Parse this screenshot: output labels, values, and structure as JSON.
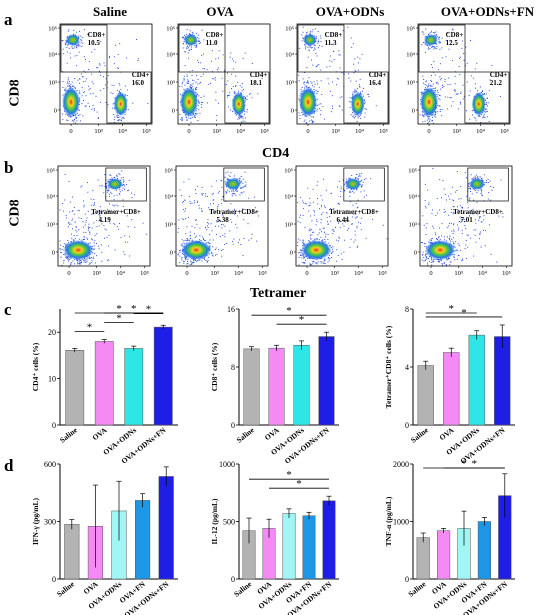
{
  "panels": {
    "a": "a",
    "b": "b",
    "c": "c",
    "d": "d"
  },
  "groups": [
    "Saline",
    "OVA",
    "OVA+ODNs",
    "OVA+ODNs+FN"
  ],
  "flow_a": {
    "y_title": "CD8",
    "x_title": "CD4",
    "gate_cd8_label": "CD8+",
    "gate_cd4_label": "CD4+",
    "cd8_values": [
      "10.5",
      "11.0",
      "11.3",
      "12.5"
    ],
    "cd4_values": [
      "16.0",
      "18.1",
      "16.4",
      "21.2"
    ],
    "y_ticks": [
      "10⁵",
      "10⁴",
      "10³",
      "0"
    ],
    "x_ticks": [
      "0",
      "10³",
      "10⁴",
      "10⁵"
    ]
  },
  "flow_b": {
    "y_title": "CD8",
    "x_title": "Tetramer",
    "gate_label": "Tetramer+CD8+",
    "values": [
      "4.19",
      "5.38",
      "6.44",
      "7.01"
    ],
    "y_ticks": [
      "10⁵",
      "10⁴",
      "10³",
      "0"
    ],
    "x_ticks": [
      "0",
      "10³",
      "10⁴",
      "10⁵"
    ]
  },
  "chart_data": [
    {
      "type": "bar",
      "panel": "c",
      "ylabel": "CD4⁺ cells (%)",
      "ylim": [
        0,
        25
      ],
      "yticks": [
        "0",
        "10",
        "20"
      ],
      "categories": [
        "Saline",
        "OVA",
        "OVA+ODNs",
        "OVA+ODNs+FN"
      ],
      "values": [
        16.1,
        18.0,
        16.5,
        21.1
      ],
      "errors": [
        0.4,
        0.4,
        0.5,
        0.4
      ],
      "colors": [
        "#b3b3b3",
        "#f58af5",
        "#2ee6e6",
        "#1e1ee6"
      ],
      "significance": [
        {
          "a": 0,
          "b": 1,
          "label": "*"
        },
        {
          "a": 1,
          "b": 2,
          "label": "*"
        },
        {
          "a": 2,
          "b": 3,
          "label": "*"
        },
        {
          "a": 1,
          "b": 3,
          "label": "*"
        },
        {
          "a": 0,
          "b": 3,
          "label": "*"
        }
      ]
    },
    {
      "type": "bar",
      "panel": "c",
      "ylabel": "CD8⁺ cells (%)",
      "ylim": [
        0,
        16
      ],
      "yticks": [
        "0",
        "8",
        "16"
      ],
      "categories": [
        "Saline",
        "OVA",
        "OVA+ODNs",
        "OVA+ODNs+FN"
      ],
      "values": [
        10.5,
        10.6,
        11.0,
        12.2
      ],
      "errors": [
        0.3,
        0.4,
        0.6,
        0.6
      ],
      "colors": [
        "#b3b3b3",
        "#f58af5",
        "#2ee6e6",
        "#1e1ee6"
      ],
      "significance": [
        {
          "a": 1,
          "b": 3,
          "label": "*"
        },
        {
          "a": 0,
          "b": 3,
          "label": "*"
        }
      ]
    },
    {
      "type": "bar",
      "panel": "c",
      "ylabel": "Tetramer⁺CD8⁺ cells (%)",
      "ylim": [
        0,
        8
      ],
      "yticks": [
        "0",
        "4",
        "8"
      ],
      "categories": [
        "Saline",
        "OVA",
        "OVA+ODNs",
        "OVA+ODNs+FN"
      ],
      "values": [
        4.1,
        5.0,
        6.2,
        6.1
      ],
      "errors": [
        0.3,
        0.3,
        0.3,
        0.8
      ],
      "colors": [
        "#b3b3b3",
        "#f58af5",
        "#2ee6e6",
        "#1e1ee6"
      ],
      "significance": [
        {
          "a": 0,
          "b": 3,
          "label": "*"
        },
        {
          "a": 0,
          "b": 2,
          "label": "*"
        }
      ]
    },
    {
      "type": "bar",
      "panel": "d",
      "ylabel": "IFN-γ (pg/mL)",
      "ylim": [
        0,
        600
      ],
      "yticks": [
        "0",
        "300",
        "600"
      ],
      "categories": [
        "Saline",
        "OVA",
        "OVA+ODNs",
        "OVA+FN",
        "OVA+ODNs+FN"
      ],
      "values": [
        285,
        275,
        355,
        410,
        535
      ],
      "errors": [
        25,
        215,
        155,
        35,
        50
      ],
      "colors": [
        "#b3b3b3",
        "#f58af5",
        "#a0f5f5",
        "#1e96e6",
        "#1e1ee6"
      ],
      "significance": []
    },
    {
      "type": "bar",
      "panel": "d",
      "ylabel": "IL-12 (pg/mL)",
      "ylim": [
        0,
        1000
      ],
      "yticks": [
        "0",
        "500",
        "1000"
      ],
      "categories": [
        "Saline",
        "OVA",
        "OVA+ODNs",
        "OVA+FN",
        "OVA+ODNs+FN"
      ],
      "values": [
        420,
        440,
        570,
        550,
        680
      ],
      "errors": [
        110,
        80,
        40,
        30,
        40
      ],
      "colors": [
        "#b3b3b3",
        "#f58af5",
        "#a0f5f5",
        "#1e96e6",
        "#1e1ee6"
      ],
      "significance": [
        {
          "a": 1,
          "b": 4,
          "label": "*"
        },
        {
          "a": 0,
          "b": 4,
          "label": "*"
        }
      ]
    },
    {
      "type": "bar",
      "panel": "d",
      "ylabel": "TNF-α (pg/mL)",
      "ylim": [
        0,
        2000
      ],
      "yticks": [
        "0",
        "1000",
        "2000"
      ],
      "categories": [
        "Saline",
        "OVA",
        "OVA+ODNs",
        "OVA+FN",
        "OVA+ODNs+FN"
      ],
      "values": [
        720,
        840,
        880,
        1000,
        1450
      ],
      "errors": [
        80,
        40,
        300,
        70,
        380
      ],
      "colors": [
        "#b3b3b3",
        "#f58af5",
        "#a0f5f5",
        "#1e96e6",
        "#1e1ee6"
      ],
      "significance": [
        {
          "a": 1,
          "b": 4,
          "label": "*"
        },
        {
          "a": 0,
          "b": 4,
          "label": "*"
        }
      ]
    }
  ]
}
